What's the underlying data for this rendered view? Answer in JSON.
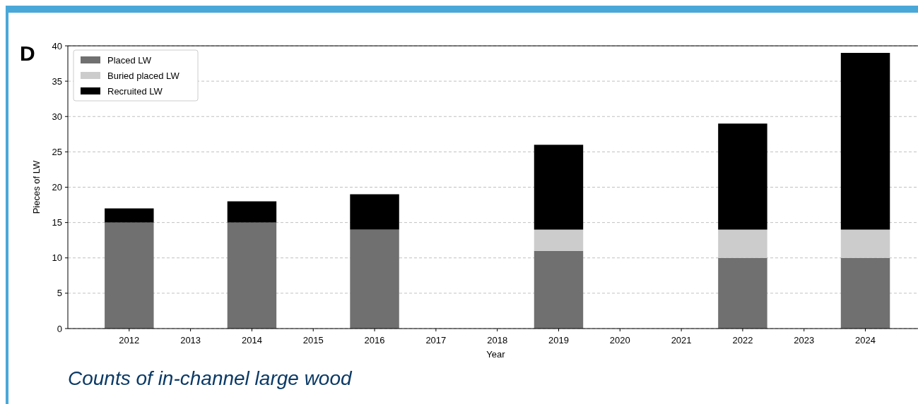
{
  "chart_data": {
    "type": "bar",
    "stacked": true,
    "xlabel": "Year",
    "ylabel": "Pieces of LW",
    "categories": [
      "2012",
      "2013",
      "2014",
      "2015",
      "2016",
      "2017",
      "2018",
      "2019",
      "2020",
      "2021",
      "2022",
      "2023",
      "2024"
    ],
    "series": [
      {
        "name": "Placed LW",
        "color": "#707070",
        "values": [
          15,
          null,
          15,
          null,
          14,
          null,
          null,
          11,
          null,
          null,
          10,
          null,
          10
        ]
      },
      {
        "name": "Buried placed LW",
        "color": "#cccccc",
        "values": [
          null,
          null,
          null,
          null,
          null,
          null,
          null,
          3,
          null,
          null,
          4,
          null,
          4
        ]
      },
      {
        "name": "Recruited LW",
        "color": "#000000",
        "values": [
          2,
          null,
          3,
          null,
          5,
          null,
          null,
          12,
          null,
          null,
          15,
          null,
          25
        ]
      }
    ],
    "ylim": [
      0,
      40
    ],
    "yticks": [
      0,
      5,
      10,
      15,
      20,
      25,
      30,
      35,
      40
    ],
    "grid": "y",
    "legend": "top left",
    "annotations": [
      "D",
      "Counts of in-channel large wood"
    ]
  }
}
